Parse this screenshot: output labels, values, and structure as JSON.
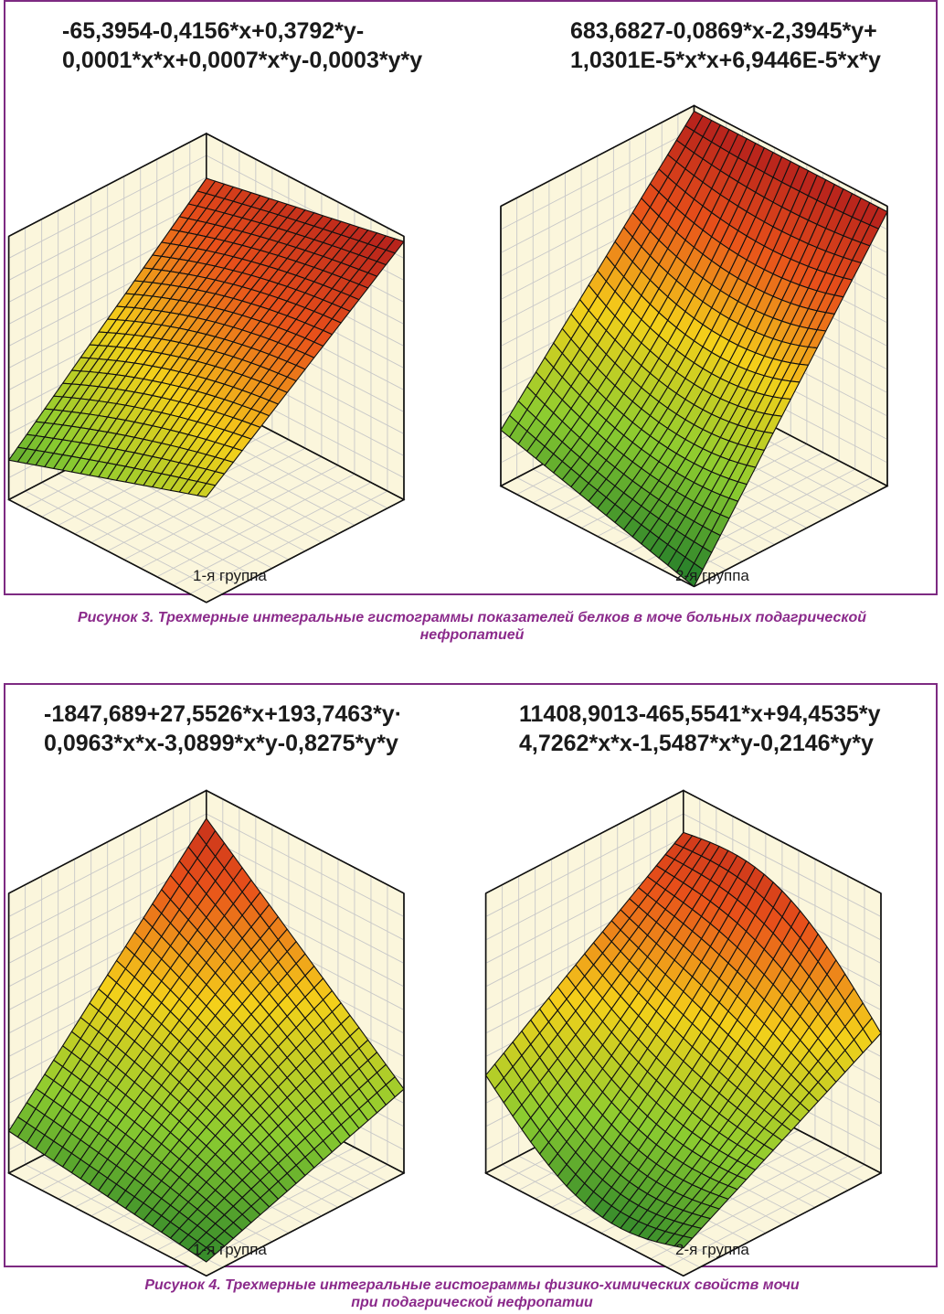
{
  "figure3": {
    "caption_line1": "Рисунок 3. Трехмерные интегральные гистограммы показателей белков в моче больных подагрической",
    "caption_line2": "нефропатией"
  },
  "figure4": {
    "caption_line1": "Рисунок 4. Трехмерные интегральные гистограммы физико-химических свойств мочи",
    "caption_line2": "при подагрической нефропатии"
  },
  "chart_data": [
    {
      "type": "surface",
      "equation_line1": "-65,3954-0,4156*x+0,3792*y-",
      "equation_line2": "0,0001*x*x+0,0007*x*y-0,0003*y*y",
      "group_label": "1-я группа",
      "corners": [
        0.83,
        0.98,
        0.4,
        0.15
      ],
      "curvature": 0.15,
      "saddle": 0.0,
      "colormap": [
        "#1f7a2a",
        "#8ccc30",
        "#f4d01a",
        "#e8501a",
        "#b01c1c"
      ]
    },
    {
      "type": "surface",
      "equation_line1": "683,6827-0,0869*x-2,3945*y+",
      "equation_line2": "1,0301E-5*x*x+6,9446E-5*x*y",
      "group_label": "2-я группа",
      "corners": [
        0.98,
        0.98,
        0.0,
        0.2
      ],
      "curvature": -0.4,
      "saddle": 0.0,
      "colormap": [
        "#1f7a2a",
        "#8ccc30",
        "#f4d01a",
        "#e8501a",
        "#b01c1c"
      ]
    },
    {
      "type": "surface",
      "equation_line1": "-1847,689+27,5526*x+193,7463*y·",
      "equation_line2": "0,0963*x*x-3,0899*x*y-0,8275*y*y",
      "group_label": "1-я группа",
      "corners": [
        0.9,
        0.3,
        0.05,
        0.15
      ],
      "curvature": 0.1,
      "saddle": 0.0,
      "colormap": [
        "#1f7a2a",
        "#8ccc30",
        "#f4d01a",
        "#e8501a",
        "#b01c1c"
      ]
    },
    {
      "type": "surface",
      "equation_line1": "11408,9013-465,5541*x+94,4535*y",
      "equation_line2": "4,7262*x*x-1,5487*x*y-0,2146*y*y",
      "group_label": "2-я группа",
      "corners": [
        0.85,
        0.5,
        0.1,
        0.35
      ],
      "curvature": -0.2,
      "saddle": 0.15,
      "colormap": [
        "#1f7a2a",
        "#8ccc30",
        "#f4d01a",
        "#e8501a",
        "#b01c1c"
      ]
    }
  ]
}
